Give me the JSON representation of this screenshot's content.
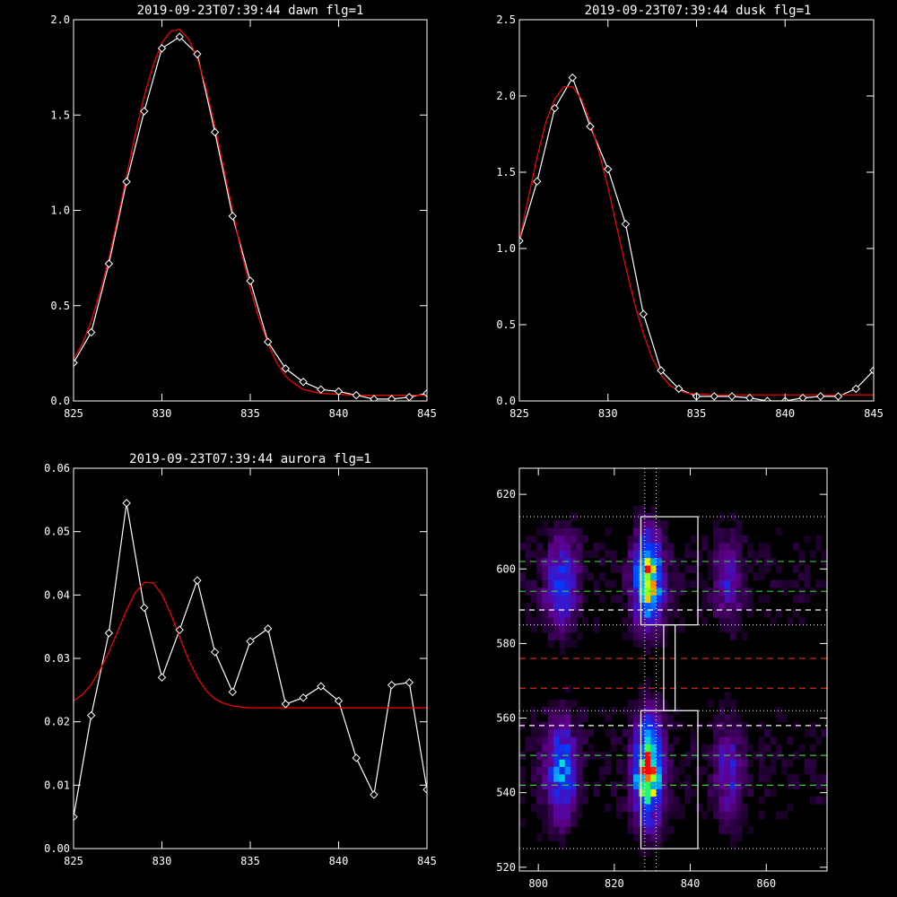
{
  "chart_data": [
    {
      "type": "line",
      "title": "2019-09-23T07:39:44 dawn flg=1",
      "xlim": [
        825,
        845
      ],
      "ylim": [
        0,
        2.0
      ],
      "xticks": [
        825,
        830,
        835,
        840,
        845
      ],
      "xtick_labels": [
        "825",
        "830",
        "835",
        "840",
        "845"
      ],
      "yticks": [
        0,
        0.5,
        1.0,
        1.5,
        2.0
      ],
      "ytick_labels": [
        "0.0",
        "0.5",
        "1.0",
        "1.5",
        "2.0"
      ],
      "grid": false,
      "series": [
        {
          "color": "#ffffff",
          "marker": "diamond",
          "x": [
            825,
            826,
            827,
            828,
            829,
            830,
            831,
            832,
            833,
            834,
            835,
            836,
            837,
            838,
            839,
            840,
            841,
            842,
            843,
            844,
            845
          ],
          "y": [
            0.2,
            0.36,
            0.72,
            1.15,
            1.52,
            1.85,
            1.91,
            1.82,
            1.41,
            0.97,
            0.63,
            0.31,
            0.17,
            0.1,
            0.06,
            0.05,
            0.03,
            0.01,
            0.01,
            0.02,
            0.04
          ]
        },
        {
          "color": "#ff0000",
          "marker": "none",
          "x": [
            825,
            825.5,
            826,
            826.5,
            827,
            827.5,
            828,
            828.5,
            829,
            829.5,
            830,
            830.5,
            831,
            831.5,
            832,
            832.5,
            833,
            833.5,
            834,
            834.5,
            835,
            835.5,
            836,
            836.5,
            837,
            837.5,
            838,
            839,
            840,
            841,
            842,
            843,
            844,
            845
          ],
          "y": [
            0.22,
            0.3,
            0.42,
            0.57,
            0.75,
            0.96,
            1.18,
            1.4,
            1.6,
            1.76,
            1.88,
            1.94,
            1.95,
            1.9,
            1.8,
            1.64,
            1.44,
            1.22,
            1.0,
            0.78,
            0.59,
            0.43,
            0.3,
            0.2,
            0.13,
            0.09,
            0.06,
            0.04,
            0.035,
            0.03,
            0.03,
            0.03,
            0.03,
            0.03
          ]
        }
      ]
    },
    {
      "type": "line",
      "title": "2019-09-23T07:39:44 dusk flg=1",
      "xlim": [
        825,
        845
      ],
      "ylim": [
        0,
        2.5
      ],
      "xticks": [
        825,
        830,
        835,
        840,
        845
      ],
      "xtick_labels": [
        "825",
        "830",
        "835",
        "840",
        "845"
      ],
      "yticks": [
        0,
        0.5,
        1.0,
        1.5,
        2.0,
        2.5
      ],
      "ytick_labels": [
        "0.0",
        "0.5",
        "1.0",
        "1.5",
        "2.0",
        "2.5"
      ],
      "grid": false,
      "series": [
        {
          "color": "#ffffff",
          "marker": "diamond",
          "x": [
            825,
            826,
            827,
            828,
            829,
            830,
            831,
            832,
            833,
            834,
            835,
            836,
            837,
            838,
            839,
            840,
            841,
            842,
            843,
            844,
            845
          ],
          "y": [
            1.05,
            1.44,
            1.92,
            2.12,
            1.8,
            1.52,
            1.16,
            0.57,
            0.2,
            0.08,
            0.03,
            0.03,
            0.03,
            0.02,
            0.0,
            0.0,
            0.02,
            0.03,
            0.03,
            0.08,
            0.2
          ]
        },
        {
          "color": "#ff0000",
          "marker": "none",
          "x": [
            825,
            825.5,
            826,
            826.5,
            827,
            827.5,
            828,
            828.5,
            829,
            829.5,
            830,
            830.5,
            831,
            831.5,
            832,
            832.5,
            833,
            833.5,
            834,
            834.5,
            835,
            836,
            837,
            838,
            839,
            840,
            841,
            842,
            843,
            844,
            845
          ],
          "y": [
            1.05,
            1.33,
            1.6,
            1.83,
            1.98,
            2.06,
            2.06,
            1.98,
            1.83,
            1.63,
            1.4,
            1.14,
            0.88,
            0.64,
            0.44,
            0.28,
            0.17,
            0.1,
            0.07,
            0.05,
            0.045,
            0.04,
            0.04,
            0.04,
            0.04,
            0.04,
            0.04,
            0.04,
            0.04,
            0.04,
            0.04
          ]
        }
      ]
    },
    {
      "type": "line",
      "title": "2019-09-23T07:39:44 aurora flg=1",
      "xlim": [
        825,
        845
      ],
      "ylim": [
        0,
        0.06
      ],
      "xticks": [
        825,
        830,
        835,
        840,
        845
      ],
      "xtick_labels": [
        "825",
        "830",
        "835",
        "840",
        "845"
      ],
      "yticks": [
        0,
        0.01,
        0.02,
        0.03,
        0.04,
        0.05,
        0.06
      ],
      "ytick_labels": [
        "0.00",
        "0.01",
        "0.02",
        "0.03",
        "0.04",
        "0.05",
        "0.06"
      ],
      "grid": false,
      "series": [
        {
          "color": "#ffffff",
          "marker": "diamond",
          "x": [
            825,
            826,
            827,
            828,
            829,
            830,
            831,
            832,
            833,
            834,
            835,
            836,
            837,
            838,
            839,
            840,
            841,
            842,
            843,
            844,
            845
          ],
          "y": [
            0.005,
            0.021,
            0.034,
            0.0545,
            0.038,
            0.027,
            0.0345,
            0.0423,
            0.031,
            0.0247,
            0.0327,
            0.0347,
            0.0228,
            0.0238,
            0.0256,
            0.0233,
            0.0143,
            0.0085,
            0.0258,
            0.0262,
            0.0093
          ]
        },
        {
          "color": "#ff0000",
          "marker": "none",
          "x": [
            825,
            825.5,
            826,
            826.5,
            827,
            827.5,
            828,
            828.5,
            829,
            829.5,
            830,
            830.5,
            831,
            831.5,
            832,
            832.5,
            833,
            833.5,
            834,
            834.5,
            835,
            836,
            837,
            838,
            839,
            840,
            841,
            842,
            843,
            844,
            845
          ],
          "y": [
            0.0233,
            0.0243,
            0.0259,
            0.0282,
            0.031,
            0.0343,
            0.0376,
            0.0404,
            0.042,
            0.0419,
            0.0401,
            0.037,
            0.0334,
            0.0298,
            0.027,
            0.0249,
            0.0236,
            0.0229,
            0.0225,
            0.0223,
            0.0222,
            0.0222,
            0.0222,
            0.0222,
            0.0222,
            0.0222,
            0.0222,
            0.0222,
            0.0222,
            0.0222,
            0.0222
          ]
        }
      ]
    },
    {
      "type": "heatmap",
      "title": "",
      "xlim": [
        795,
        876
      ],
      "ylim": [
        519,
        627
      ],
      "xticks": [
        800,
        820,
        840,
        860
      ],
      "xtick_labels": [
        "800",
        "820",
        "840",
        "860"
      ],
      "yticks": [
        520,
        540,
        560,
        580,
        600,
        620
      ],
      "ytick_labels": [
        "520",
        "540",
        "560",
        "580",
        "600",
        "620"
      ],
      "grid": false,
      "blobs": [
        {
          "x": 806,
          "y": 596,
          "sx": 2.8,
          "sy": 8,
          "amp": 0.42
        },
        {
          "x": 806,
          "y": 546,
          "sx": 2.8,
          "sy": 9,
          "amp": 0.45
        },
        {
          "x": 829,
          "y": 597,
          "sx": 2.5,
          "sy": 8,
          "amp": 0.85
        },
        {
          "x": 829,
          "y": 546,
          "sx": 2.5,
          "sy": 9,
          "amp": 0.92
        },
        {
          "x": 850,
          "y": 597,
          "sx": 2.5,
          "sy": 8,
          "amp": 0.22
        },
        {
          "x": 850,
          "y": 545,
          "sx": 2.5,
          "sy": 9,
          "amp": 0.26
        }
      ],
      "vertical_dotted_lines": [
        828,
        831
      ],
      "horizontal_dotted_lines": [
        525,
        562,
        585,
        614
      ],
      "white_dashed_lines": [
        558,
        589
      ],
      "green_dashed_lines": [
        542,
        550,
        594,
        602
      ],
      "red_dashed_lines": [
        568,
        576
      ],
      "white_boxes": [
        {
          "x0": 827,
          "x1": 842,
          "y0": 525,
          "y1": 562
        },
        {
          "x0": 833,
          "x1": 836,
          "y0": 562,
          "y1": 585
        },
        {
          "x0": 827,
          "x1": 842,
          "y0": 585,
          "y1": 614
        }
      ],
      "colors": {
        "dotted": "#ffffff",
        "white_dash": "#ffffff",
        "green_dash": "#33cc33",
        "red_dash": "#dd2222",
        "box": "#ffffff"
      }
    }
  ]
}
